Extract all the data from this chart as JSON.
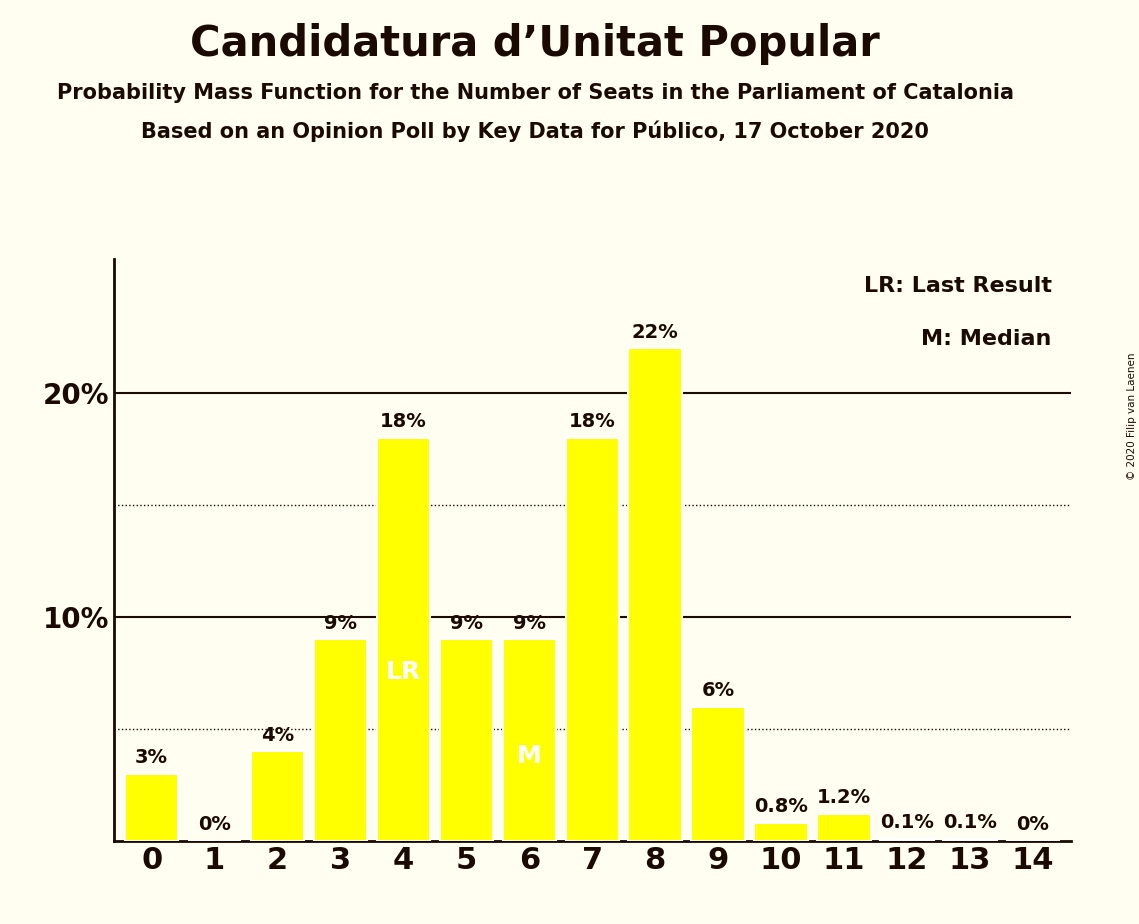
{
  "title": "Candidatura d’Unitat Popular",
  "subtitle1": "Probability Mass Function for the Number of Seats in the Parliament of Catalonia",
  "subtitle2": "Based on an Opinion Poll by Key Data for Público, 17 October 2020",
  "copyright": "© 2020 Filip van Laenen",
  "seats": [
    0,
    1,
    2,
    3,
    4,
    5,
    6,
    7,
    8,
    9,
    10,
    11,
    12,
    13,
    14
  ],
  "probabilities": [
    3,
    0,
    4,
    9,
    18,
    9,
    9,
    18,
    22,
    6,
    0.8,
    1.2,
    0.1,
    0.1,
    0
  ],
  "bar_color": "#FFFF00",
  "bar_edge_color": "#FFFFFF",
  "background_color": "#FFFEF0",
  "text_color": "#1a0a00",
  "label_texts": [
    "3%",
    "0%",
    "4%",
    "9%",
    "18%",
    "9%",
    "9%",
    "18%",
    "22%",
    "6%",
    "0.8%",
    "1.2%",
    "0.1%",
    "0.1%",
    "0%"
  ],
  "lr_seat": 4,
  "lr_label": "LR",
  "median_seat": 6,
  "median_label": "M",
  "legend_lr": "LR: Last Result",
  "legend_m": "M: Median",
  "solid_gridlines": [
    10,
    20
  ],
  "dotted_gridlines": [
    5,
    15
  ],
  "title_fontsize": 30,
  "subtitle_fontsize": 15,
  "bar_label_fontsize": 14,
  "legend_fontsize": 16,
  "ytick_fontsize": 20,
  "xtick_fontsize": 22,
  "lr_m_fontsize": 18
}
